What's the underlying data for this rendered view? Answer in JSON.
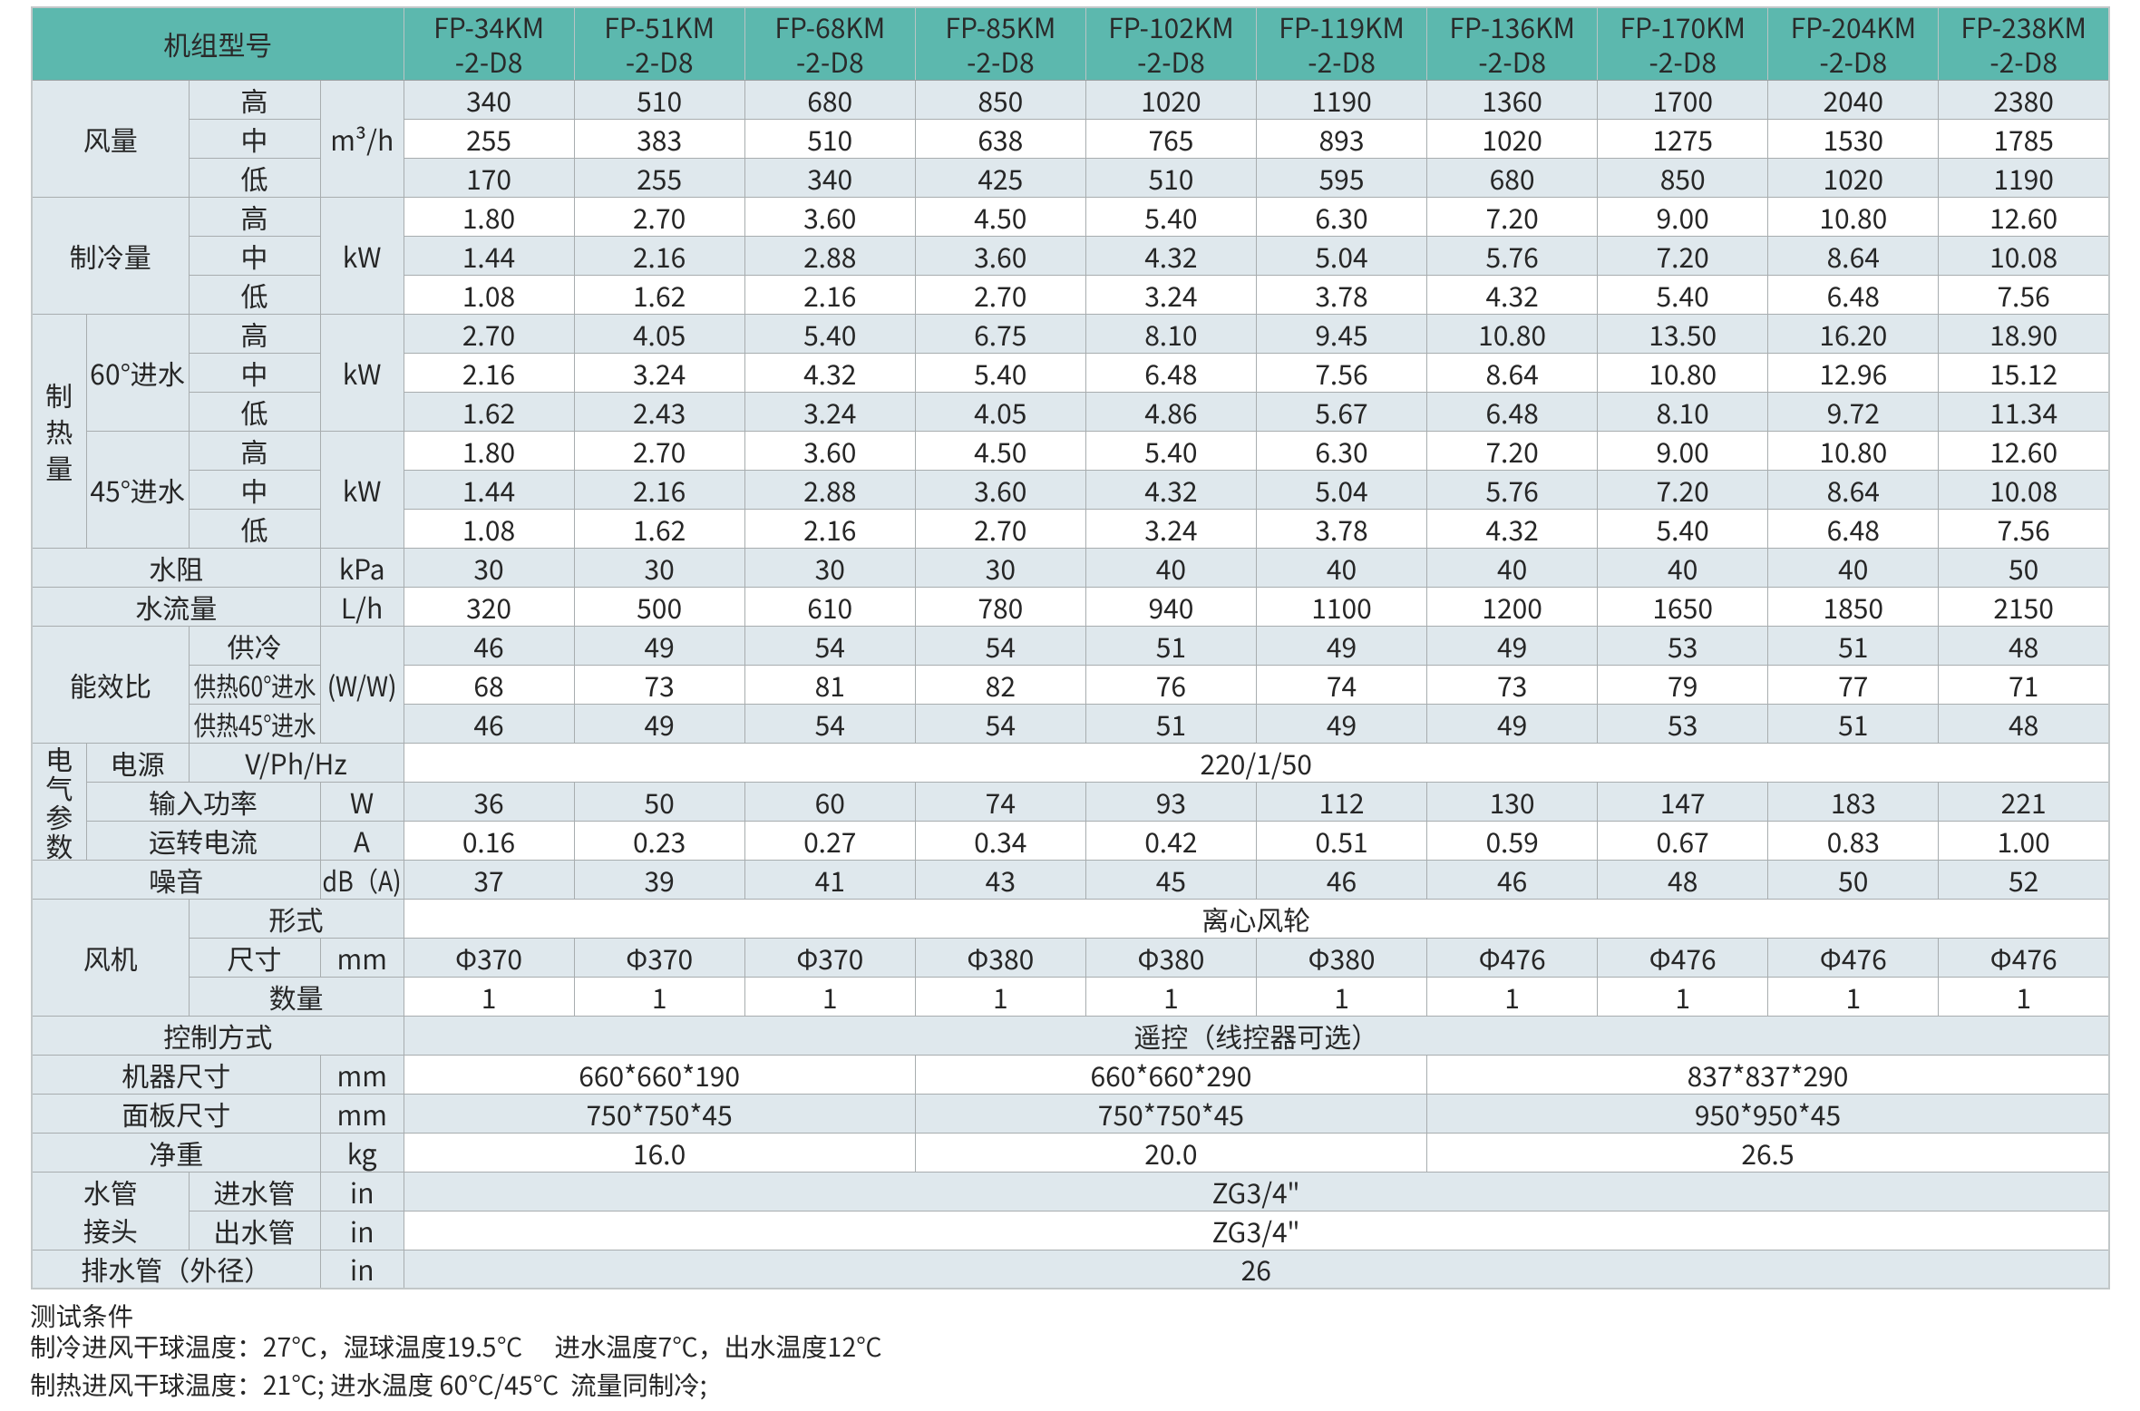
{
  "table": {
    "corner_label": "机组型号",
    "model_suffix": "-2-D8",
    "models": [
      "FP-34KM",
      "FP-51KM",
      "FP-68KM",
      "FP-85KM",
      "FP-102KM",
      "FP-119KM",
      "FP-136KM",
      "FP-170KM",
      "FP-204KM",
      "FP-238KM"
    ],
    "sections": {
      "airflow": {
        "label": "风量",
        "unit": "m³/h",
        "rows": [
          {
            "speed": "高",
            "values": [
              "340",
              "510",
              "680",
              "850",
              "1020",
              "1190",
              "1360",
              "1700",
              "2040",
              "2380"
            ]
          },
          {
            "speed": "中",
            "values": [
              "255",
              "383",
              "510",
              "638",
              "765",
              "893",
              "1020",
              "1275",
              "1530",
              "1785"
            ]
          },
          {
            "speed": "低",
            "values": [
              "170",
              "255",
              "340",
              "425",
              "510",
              "595",
              "680",
              "850",
              "1020",
              "1190"
            ]
          }
        ]
      },
      "cooling": {
        "label": "制冷量",
        "unit": "kW",
        "rows": [
          {
            "speed": "高",
            "values": [
              "1.80",
              "2.70",
              "3.60",
              "4.50",
              "5.40",
              "6.30",
              "7.20",
              "9.00",
              "10.80",
              "12.60"
            ]
          },
          {
            "speed": "中",
            "values": [
              "1.44",
              "2.16",
              "2.88",
              "3.60",
              "4.32",
              "5.04",
              "5.76",
              "7.20",
              "8.64",
              "10.08"
            ]
          },
          {
            "speed": "低",
            "values": [
              "1.08",
              "1.62",
              "2.16",
              "2.70",
              "3.24",
              "3.78",
              "4.32",
              "5.40",
              "6.48",
              "7.56"
            ]
          }
        ]
      },
      "heating": {
        "label": "制热量",
        "sub60": {
          "label": "60°进水",
          "unit": "kW",
          "rows": [
            {
              "speed": "高",
              "values": [
                "2.70",
                "4.05",
                "5.40",
                "6.75",
                "8.10",
                "9.45",
                "10.80",
                "13.50",
                "16.20",
                "18.90"
              ]
            },
            {
              "speed": "中",
              "values": [
                "2.16",
                "3.24",
                "4.32",
                "5.40",
                "6.48",
                "7.56",
                "8.64",
                "10.80",
                "12.96",
                "15.12"
              ]
            },
            {
              "speed": "低",
              "values": [
                "1.62",
                "2.43",
                "3.24",
                "4.05",
                "4.86",
                "5.67",
                "6.48",
                "8.10",
                "9.72",
                "11.34"
              ]
            }
          ]
        },
        "sub45": {
          "label": "45°进水",
          "unit": "kW",
          "rows": [
            {
              "speed": "高",
              "values": [
                "1.80",
                "2.70",
                "3.60",
                "4.50",
                "5.40",
                "6.30",
                "7.20",
                "9.00",
                "10.80",
                "12.60"
              ]
            },
            {
              "speed": "中",
              "values": [
                "1.44",
                "2.16",
                "2.88",
                "3.60",
                "4.32",
                "5.04",
                "5.76",
                "7.20",
                "8.64",
                "10.08"
              ]
            },
            {
              "speed": "低",
              "values": [
                "1.08",
                "1.62",
                "2.16",
                "2.70",
                "3.24",
                "3.78",
                "4.32",
                "5.40",
                "6.48",
                "7.56"
              ]
            }
          ]
        }
      },
      "water_resistance": {
        "label": "水阻",
        "unit": "kPa",
        "values": [
          "30",
          "30",
          "30",
          "30",
          "40",
          "40",
          "40",
          "40",
          "40",
          "50"
        ]
      },
      "water_flow": {
        "label": "水流量",
        "unit": "L/h",
        "values": [
          "320",
          "500",
          "610",
          "780",
          "940",
          "1100",
          "1200",
          "1650",
          "1850",
          "2150"
        ]
      },
      "eer": {
        "label": "能效比",
        "unit": "(W/W)",
        "rows": [
          {
            "mode": "供冷",
            "values": [
              "46",
              "49",
              "54",
              "54",
              "51",
              "49",
              "49",
              "53",
              "51",
              "48"
            ]
          },
          {
            "mode": "供热60°进水",
            "values": [
              "68",
              "73",
              "81",
              "82",
              "76",
              "74",
              "73",
              "79",
              "77",
              "71"
            ]
          },
          {
            "mode": "供热45°进水",
            "values": [
              "46",
              "49",
              "54",
              "54",
              "51",
              "49",
              "49",
              "53",
              "51",
              "48"
            ]
          }
        ]
      },
      "electrical": {
        "label": "电气参数",
        "power_supply": {
          "label": "电源",
          "unit": "V/Ph/Hz",
          "value": "220/1/50"
        },
        "input_power": {
          "label": "输入功率",
          "unit": "W",
          "values": [
            "36",
            "50",
            "60",
            "74",
            "93",
            "112",
            "130",
            "147",
            "183",
            "221"
          ]
        },
        "running_current": {
          "label": "运转电流",
          "unit": "A",
          "values": [
            "0.16",
            "0.23",
            "0.27",
            "0.34",
            "0.42",
            "0.51",
            "0.59",
            "0.67",
            "0.83",
            "1.00"
          ]
        }
      },
      "noise": {
        "label": "噪音",
        "unit": "dB（A)",
        "values": [
          "37",
          "39",
          "41",
          "43",
          "45",
          "46",
          "46",
          "48",
          "50",
          "52"
        ]
      },
      "fan": {
        "label": "风机",
        "form": {
          "label": "形式",
          "value": "离心风轮"
        },
        "size": {
          "label": "尺寸",
          "unit": "mm",
          "values": [
            "Φ370",
            "Φ370",
            "Φ370",
            "Φ380",
            "Φ380",
            "Φ380",
            "Φ476",
            "Φ476",
            "Φ476",
            "Φ476"
          ]
        },
        "quantity": {
          "label": "数量",
          "values": [
            "1",
            "1",
            "1",
            "1",
            "1",
            "1",
            "1",
            "1",
            "1",
            "1"
          ]
        }
      },
      "control_mode": {
        "label": "控制方式",
        "value": "遥控（线控器可选）"
      },
      "unit_size": {
        "label": "机器尺寸",
        "unit": "mm",
        "values": [
          "660*660*190",
          "660*660*290",
          "837*837*290"
        ]
      },
      "panel_size": {
        "label": "面板尺寸",
        "unit": "mm",
        "values": [
          "750*750*45",
          "750*750*45",
          "950*950*45"
        ]
      },
      "net_weight": {
        "label": "净重",
        "unit": "kg",
        "values": [
          "16.0",
          "20.0",
          "26.5"
        ]
      },
      "pipe_joint": {
        "label": "水管接头",
        "label_line1": "水管",
        "label_line2": "接头",
        "inlet": {
          "label": "进水管",
          "unit": "in",
          "value": "ZG3/4\""
        },
        "outlet": {
          "label": "出水管",
          "unit": "in",
          "value": "ZG3/4\""
        }
      },
      "drain_pipe": {
        "label": "排水管（外径）",
        "unit": "in",
        "value": "26"
      }
    }
  },
  "footer": {
    "title": "测试条件",
    "line1": "制冷进风干球温度：27°C，湿球温度19.5°C　 进水温度7°C，出水温度12°C",
    "line2": "制热进风干球温度：21°C; 进水温度 60°C/45°C  流量同制冷;"
  },
  "colors": {
    "header_teal": "#5cb8ae",
    "row_shade": "#dfe8ed",
    "row_white": "#ffffff",
    "border": "#a8adaf",
    "text": "#262626"
  }
}
